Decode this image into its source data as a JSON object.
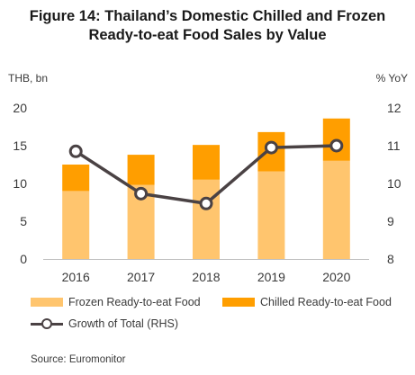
{
  "title_line1": "Figure 14: Thailand’s Domestic Chilled and Frozen",
  "title_line2": "Ready-to-eat Food Sales by Value",
  "source": "Source: Euromonitor",
  "colors": {
    "frozen": "#FFC56E",
    "chilled": "#FF9E00",
    "growth": "#4A4244"
  },
  "chart_data": {
    "type": "bar",
    "stacked": true,
    "categories": [
      "2016",
      "2017",
      "2018",
      "2019",
      "2020"
    ],
    "series": [
      {
        "name": "Frozen Ready-to-eat Food",
        "values": [
          9.0,
          9.8,
          10.5,
          11.6,
          13.0
        ],
        "axis": "left"
      },
      {
        "name": "Chilled Ready-to-eat Food",
        "values": [
          3.5,
          4.0,
          4.6,
          5.2,
          5.6
        ],
        "axis": "left"
      },
      {
        "name": "Growth of Total (RHS)",
        "type": "line",
        "values": [
          10.85,
          9.73,
          9.47,
          10.95,
          11.0
        ],
        "axis": "right"
      }
    ],
    "left_axis": {
      "unit": "THB, bn",
      "ylim": [
        0,
        20
      ],
      "ticks": [
        "0",
        "5",
        "10",
        "15",
        "20"
      ]
    },
    "right_axis": {
      "unit": "% YoY",
      "ylim": [
        8,
        12
      ],
      "ticks": [
        "8",
        "9",
        "10",
        "11",
        "12"
      ]
    },
    "grid": false,
    "legend_position": "bottom"
  }
}
